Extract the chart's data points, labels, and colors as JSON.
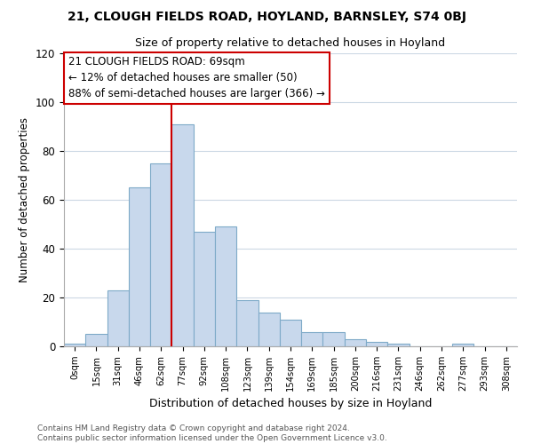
{
  "title": "21, CLOUGH FIELDS ROAD, HOYLAND, BARNSLEY, S74 0BJ",
  "subtitle": "Size of property relative to detached houses in Hoyland",
  "xlabel": "Distribution of detached houses by size in Hoyland",
  "ylabel": "Number of detached properties",
  "bar_labels": [
    "0sqm",
    "15sqm",
    "31sqm",
    "46sqm",
    "62sqm",
    "77sqm",
    "92sqm",
    "108sqm",
    "123sqm",
    "139sqm",
    "154sqm",
    "169sqm",
    "185sqm",
    "200sqm",
    "216sqm",
    "231sqm",
    "246sqm",
    "262sqm",
    "277sqm",
    "293sqm",
    "308sqm"
  ],
  "bar_values": [
    1,
    5,
    23,
    65,
    75,
    91,
    47,
    49,
    19,
    14,
    11,
    6,
    6,
    3,
    2,
    1,
    0,
    0,
    1,
    0,
    0
  ],
  "bar_color": "#c8d8ec",
  "bar_edge_color": "#7eaac8",
  "vline_x": 4.5,
  "vline_color": "#cc0000",
  "annotation_title": "21 CLOUGH FIELDS ROAD: 69sqm",
  "annotation_line1": "← 12% of detached houses are smaller (50)",
  "annotation_line2": "88% of semi-detached houses are larger (366) →",
  "annotation_box_color": "#ffffff",
  "annotation_box_edge": "#cc0000",
  "ylim": [
    0,
    120
  ],
  "yticks": [
    0,
    20,
    40,
    60,
    80,
    100,
    120
  ],
  "footer_line1": "Contains HM Land Registry data © Crown copyright and database right 2024.",
  "footer_line2": "Contains public sector information licensed under the Open Government Licence v3.0.",
  "background_color": "#ffffff",
  "grid_color": "#ccd8e4"
}
